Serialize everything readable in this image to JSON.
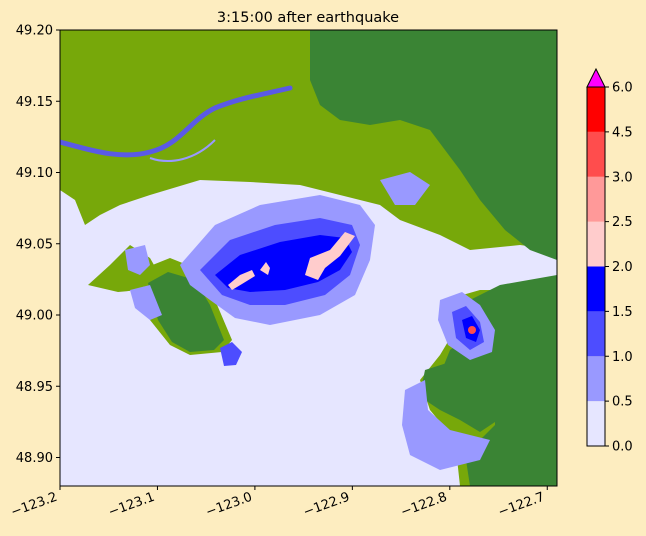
{
  "chart_data": {
    "type": "heatmap",
    "title": "3:15:00 after earthquake",
    "xlabel": "",
    "ylabel": "",
    "xlim": [
      -123.2,
      -122.69
    ],
    "ylim": [
      48.88,
      49.2
    ],
    "x_ticks": [
      -123.2,
      -123.1,
      -123.0,
      -122.9,
      -122.8,
      -122.7
    ],
    "x_tick_labels": [
      "−123.2",
      "−123.1",
      "−123.0",
      "−122.9",
      "−122.8",
      "−122.7"
    ],
    "y_ticks": [
      48.9,
      48.95,
      49.0,
      49.05,
      49.1,
      49.15,
      49.2
    ],
    "y_tick_labels": [
      "48.90",
      "48.95",
      "49.00",
      "49.05",
      "49.10",
      "49.15",
      "49.20"
    ],
    "grid": false,
    "colorbar": {
      "extend": "max",
      "levels": [
        0.0,
        0.5,
        1.0,
        1.5,
        2.0,
        2.5,
        3.0,
        4.5,
        6.0
      ],
      "tick_labels": [
        "0.0",
        "0.5",
        "1.0",
        "1.5",
        "2.0",
        "2.5",
        "3.0",
        "4.5",
        "6.0"
      ],
      "colors": [
        "#e6e6ff",
        "#9999ff",
        "#4d4dff",
        "#0000ff",
        "#ffcccc",
        "#ff9999",
        "#ff4d4d",
        "#ff0000"
      ],
      "over_color": "#ff00ff"
    },
    "land_colors": {
      "lowland": "#77a80a",
      "upland": "#3a8434"
    }
  }
}
